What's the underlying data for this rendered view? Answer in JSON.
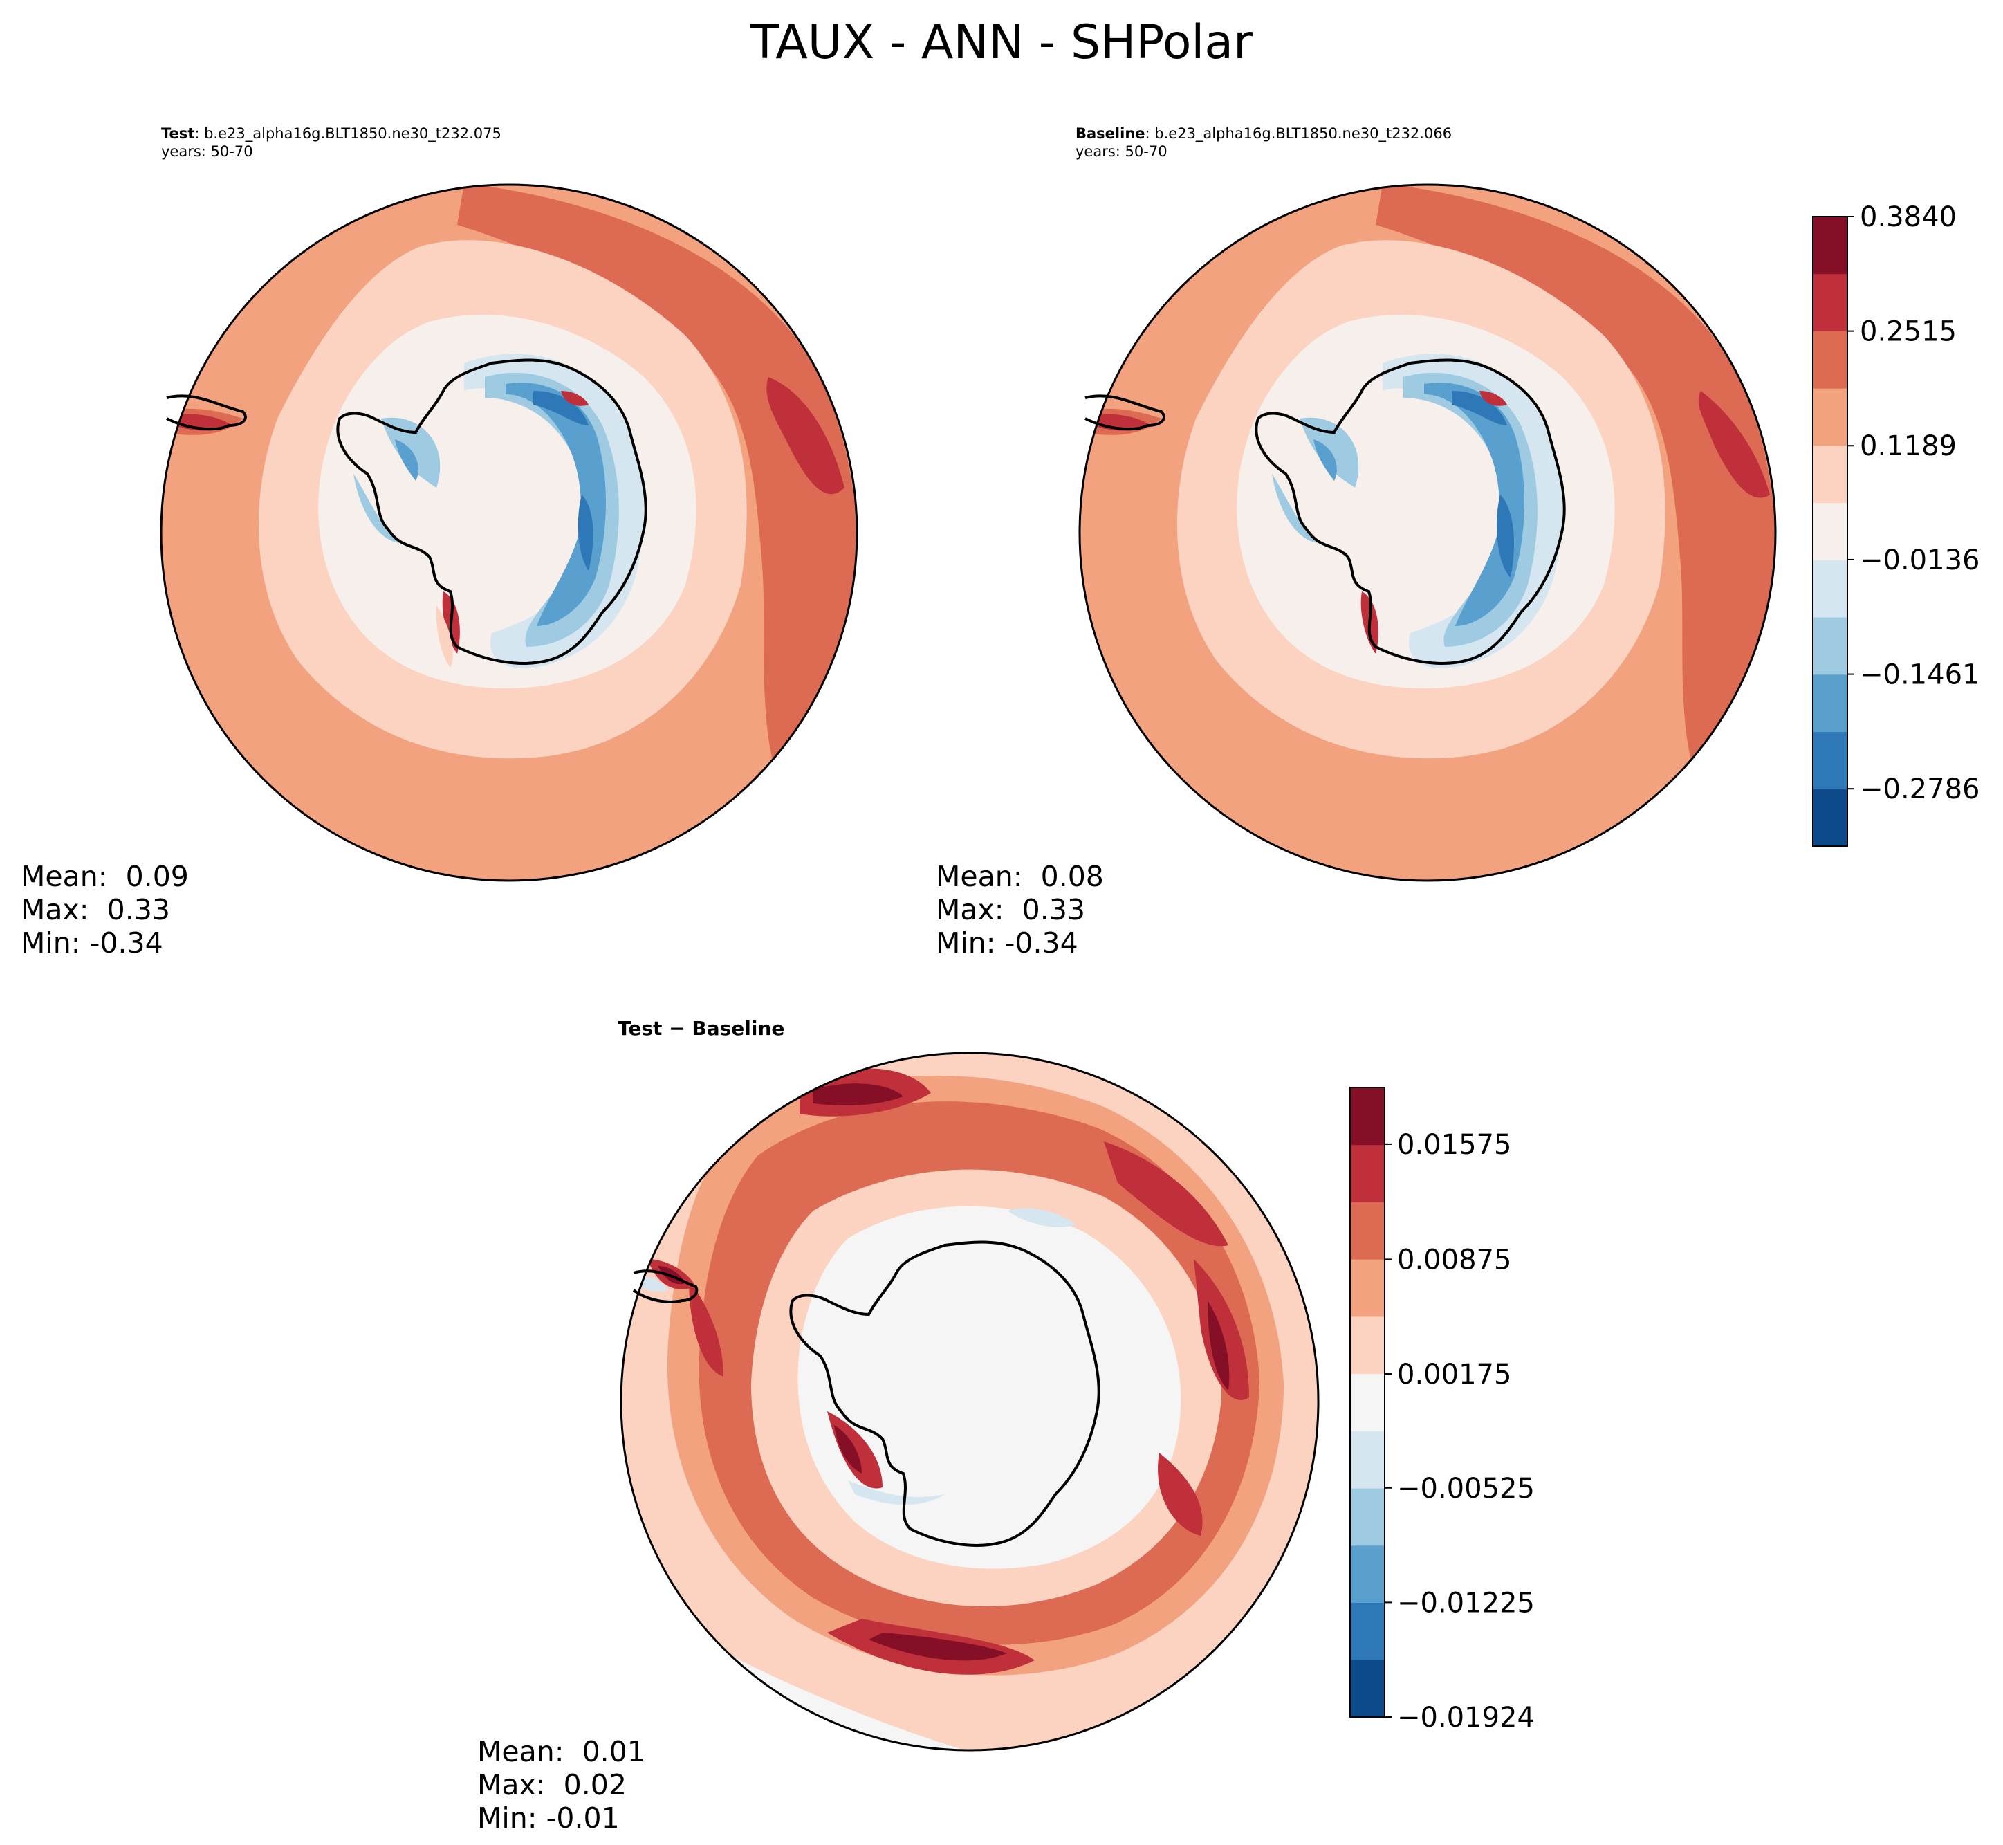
{
  "title": "TAUX - ANN - SHPolar",
  "test": {
    "label": "Test",
    "case": "b.e23_alpha16g.BLT1850.ne30_t232.075",
    "years": "years: 50-70",
    "stats": {
      "mean": "Mean:  0.09",
      "max": "Max:  0.33",
      "min": "Min: -0.34"
    }
  },
  "baseline": {
    "label": "Baseline",
    "case": "b.e23_alpha16g.BLT1850.ne30_t232.066",
    "years": "years: 50-70",
    "stats": {
      "mean": "Mean:  0.08",
      "max": "Max:  0.33",
      "min": "Min: -0.34"
    }
  },
  "diff": {
    "title": "Test − Baseline",
    "stats": {
      "mean": "Mean:  0.01",
      "max": "Max:  0.02",
      "min": "Min: -0.01"
    }
  },
  "colorbar_main": {
    "ticks": [
      "0.3840",
      "0.2515",
      "0.1189",
      "−0.0136",
      "−0.1461",
      "−0.2786"
    ],
    "colors": [
      "#0d4a8a",
      "#2f78b8",
      "#5aa0cf",
      "#9ecbe2",
      "#d5e6f1",
      "#f7efeb",
      "#fbd3c0",
      "#f2a27f",
      "#dd6b54",
      "#c0303a",
      "#840f27"
    ]
  },
  "colorbar_diff": {
    "ticks": [
      "0.01575",
      "0.00875",
      "0.00175",
      "−0.00525",
      "−0.01225",
      "−0.01924"
    ],
    "colors": [
      "#0d4a8a",
      "#2f78b8",
      "#5aa0cf",
      "#9ecbe2",
      "#d5e6f1",
      "#f5f5f5",
      "#fbd3c0",
      "#f2a27f",
      "#dd6b54",
      "#c0303a",
      "#840f27"
    ]
  },
  "chart_data": [
    {
      "type": "heatmap",
      "panel": "Test",
      "projection": "south-polar-stereographic",
      "variable": "TAUX",
      "levels": [
        -0.3786,
        -0.3124,
        -0.2461,
        -0.1799,
        -0.1136,
        -0.0474,
        0.0189,
        0.0851,
        0.1514,
        0.2176,
        0.2839,
        0.384
      ],
      "mean": 0.09,
      "max": 0.33,
      "min": -0.34
    },
    {
      "type": "heatmap",
      "panel": "Baseline",
      "projection": "south-polar-stereographic",
      "variable": "TAUX",
      "levels": [
        -0.3786,
        -0.3124,
        -0.2461,
        -0.1799,
        -0.1136,
        -0.0474,
        0.0189,
        0.0851,
        0.1514,
        0.2176,
        0.2839,
        0.384
      ],
      "mean": 0.08,
      "max": 0.33,
      "min": -0.34
    },
    {
      "type": "heatmap",
      "panel": "Test − Baseline",
      "projection": "south-polar-stereographic",
      "variable": "TAUX",
      "levels": [
        -0.01924,
        -0.01575,
        -0.01225,
        -0.00875,
        -0.00525,
        -0.00175,
        0.00175,
        0.00525,
        0.00875,
        0.01225,
        0.01575,
        0.0215
      ],
      "mean": 0.01,
      "max": 0.02,
      "min": -0.01
    }
  ]
}
